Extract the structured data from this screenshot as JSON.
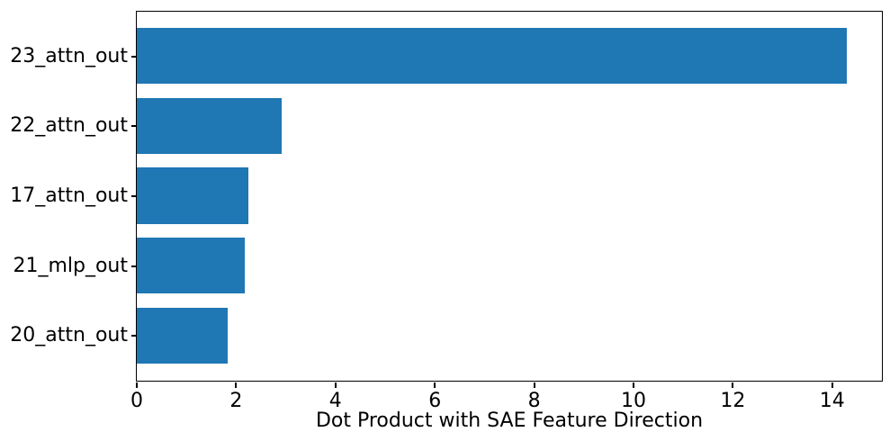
{
  "chart_data": {
    "type": "bar",
    "orientation": "horizontal",
    "title": "",
    "xlabel": "Dot Product with SAE Feature Direction",
    "ylabel": "",
    "categories": [
      "23_attn_out",
      "22_attn_out",
      "17_attn_out",
      "21_mlp_out",
      "20_attn_out"
    ],
    "values": [
      14.3,
      2.92,
      2.26,
      2.19,
      1.83
    ],
    "xlim": [
      0,
      15
    ],
    "xticks": [
      0,
      2,
      4,
      6,
      8,
      10,
      12,
      14
    ],
    "xtick_labels": [
      "0",
      "2",
      "4",
      "6",
      "8",
      "10",
      "12",
      "14"
    ],
    "bar_color": "#1f77b4",
    "axis_color": "#000000",
    "text_color": "#000000",
    "background_color": "#ffffff",
    "bar_height_fraction": 0.8,
    "grid": false,
    "legend": null
  }
}
